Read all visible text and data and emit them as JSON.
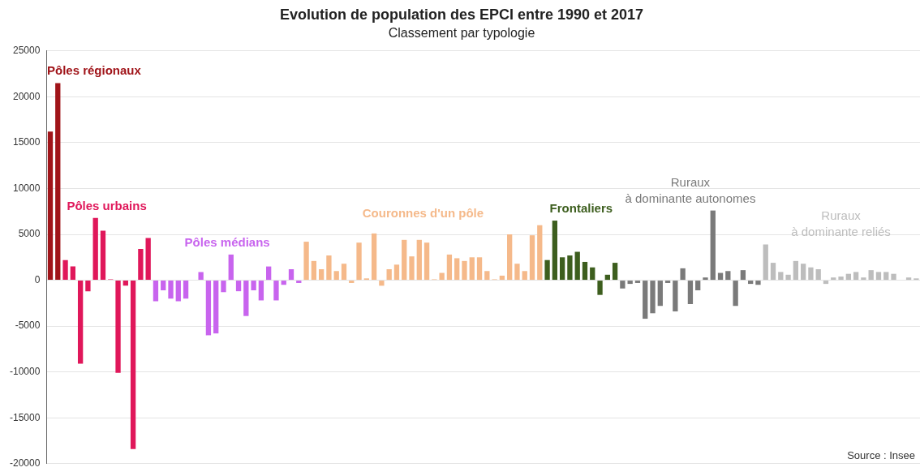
{
  "chart_data": {
    "type": "bar",
    "title": "Evolution de population des EPCI entre 1990 et 2017",
    "subtitle": "Classement par typologie",
    "categories": [
      null,
      null,
      null,
      null,
      null,
      null,
      null,
      null,
      null,
      null,
      null,
      null,
      null,
      null,
      null,
      null,
      null,
      null,
      null,
      null,
      null,
      null,
      null,
      null,
      null,
      null,
      null,
      null,
      null,
      null,
      null,
      null,
      null,
      null,
      null,
      null,
      null,
      null,
      null,
      null,
      null,
      null,
      null,
      null,
      null,
      null,
      null,
      null,
      null,
      null,
      null,
      null,
      null,
      null,
      null,
      null,
      null,
      null,
      null,
      null,
      null,
      null,
      null,
      null,
      null,
      null,
      null,
      null,
      null,
      null,
      null,
      null,
      null,
      null,
      null,
      null,
      null,
      null,
      null,
      null,
      null,
      null,
      null,
      null,
      null,
      null,
      null,
      null,
      null,
      null,
      null,
      null,
      null,
      null,
      null,
      null,
      null,
      null,
      null,
      null,
      null,
      null,
      null,
      null,
      null,
      null,
      null,
      null,
      null,
      null,
      null,
      null,
      null,
      null,
      null,
      null
    ],
    "series": [
      {
        "name": "Pôles régionaux",
        "color": "#a01419",
        "values": [
          16200,
          21500,
          null,
          null,
          null,
          null,
          null,
          null,
          null,
          null,
          null,
          null,
          null,
          null,
          null,
          null,
          null,
          null,
          null,
          null,
          null,
          null,
          null,
          null,
          null,
          null,
          null,
          null,
          null,
          null,
          null,
          null,
          null,
          null,
          null,
          null,
          null,
          null,
          null,
          null,
          null,
          null,
          null,
          null,
          null,
          null,
          null,
          null,
          null,
          null,
          null,
          null,
          null,
          null,
          null,
          null,
          null,
          null,
          null,
          null,
          null,
          null,
          null,
          null,
          null,
          null,
          null,
          null,
          null,
          null,
          null,
          null,
          null,
          null,
          null,
          null,
          null,
          null,
          null,
          null,
          null,
          null,
          null,
          null,
          null,
          null,
          null,
          null,
          null,
          null,
          null,
          null,
          null,
          null,
          null,
          null,
          null,
          null,
          null,
          null,
          null,
          null,
          null,
          null,
          null,
          null,
          null,
          null,
          null,
          null,
          null,
          null,
          null,
          null,
          null,
          null
        ]
      },
      {
        "name": "Pôles urbains",
        "color": "#e0175a",
        "values": [
          null,
          null,
          2200,
          1500,
          -9100,
          -1200,
          6800,
          5400,
          100,
          -10100,
          -600,
          -18400,
          3400,
          4600,
          null,
          null,
          null,
          null,
          null,
          null,
          null,
          null,
          null,
          null,
          null,
          null,
          null,
          null,
          null,
          null,
          null,
          null,
          null,
          null,
          null,
          null,
          null,
          null,
          null,
          null,
          null,
          null,
          null,
          null,
          null,
          null,
          null,
          null,
          null,
          null,
          null,
          null,
          null,
          null,
          null,
          null,
          null,
          null,
          null,
          null,
          null,
          null,
          null,
          null,
          null,
          null,
          null,
          null,
          null,
          null,
          null,
          null,
          null,
          null,
          null,
          null,
          null,
          null,
          null,
          null,
          null,
          null,
          null,
          null,
          null,
          null,
          null,
          null,
          null,
          null,
          null,
          null,
          null,
          null,
          null,
          null,
          null,
          null,
          null,
          null,
          null,
          null,
          null,
          null,
          null,
          null,
          null,
          null,
          null,
          null,
          null,
          null,
          null,
          null,
          null,
          null
        ]
      },
      {
        "name": "Pôles médians",
        "color": "#c864ee",
        "values": [
          null,
          null,
          null,
          null,
          null,
          null,
          null,
          null,
          null,
          null,
          null,
          null,
          null,
          null,
          -2300,
          -1100,
          -2000,
          -2300,
          -2000,
          0,
          900,
          -6000,
          -5800,
          -1300,
          2800,
          -1200,
          -3900,
          -1100,
          -2200,
          1500,
          -2200,
          -500,
          1200,
          -300,
          null,
          null,
          null,
          null,
          null,
          null,
          null,
          null,
          null,
          null,
          null,
          null,
          null,
          null,
          null,
          null,
          null,
          null,
          null,
          null,
          null,
          null,
          null,
          null,
          null,
          null,
          null,
          null,
          null,
          null,
          null,
          null,
          null,
          null,
          null,
          null,
          null,
          null,
          null,
          null,
          null,
          null,
          null,
          null,
          null,
          null,
          null,
          null,
          null,
          null,
          null,
          null,
          null,
          null,
          null,
          null,
          null,
          null,
          null,
          null,
          null,
          null,
          null,
          null,
          null,
          null,
          null,
          null,
          null,
          null,
          null,
          null,
          null,
          null,
          null,
          null,
          null,
          null,
          null,
          null,
          null,
          null
        ]
      },
      {
        "name": "Couronnes d'un pôle",
        "color": "#f5b98a",
        "values": [
          null,
          null,
          null,
          null,
          null,
          null,
          null,
          null,
          null,
          null,
          null,
          null,
          null,
          null,
          null,
          null,
          null,
          null,
          null,
          null,
          null,
          null,
          null,
          null,
          null,
          null,
          null,
          null,
          null,
          null,
          null,
          null,
          null,
          null,
          4200,
          2100,
          1200,
          2700,
          1000,
          1800,
          -300,
          4100,
          200,
          5100,
          -600,
          1200,
          1700,
          4400,
          2600,
          4400,
          4100,
          100,
          800,
          2800,
          2400,
          2100,
          2500,
          2500,
          1000,
          100,
          500,
          5000,
          1800,
          1000,
          4900,
          6000,
          null,
          null,
          null,
          null,
          null,
          null,
          null,
          null,
          null,
          null,
          null,
          null,
          null,
          null,
          null,
          null,
          null,
          null,
          null,
          null,
          null,
          null,
          null,
          null,
          null,
          null,
          null,
          null,
          null,
          null,
          null,
          null,
          null,
          null,
          null,
          null,
          null,
          null,
          null,
          null,
          null,
          null,
          null,
          null,
          null,
          null,
          null,
          null,
          null,
          null
        ]
      },
      {
        "name": "Frontaliers",
        "color": "#3d5e1e",
        "values": [
          null,
          null,
          null,
          null,
          null,
          null,
          null,
          null,
          null,
          null,
          null,
          null,
          null,
          null,
          null,
          null,
          null,
          null,
          null,
          null,
          null,
          null,
          null,
          null,
          null,
          null,
          null,
          null,
          null,
          null,
          null,
          null,
          null,
          null,
          null,
          null,
          null,
          null,
          null,
          null,
          null,
          null,
          null,
          null,
          null,
          null,
          null,
          null,
          null,
          null,
          null,
          null,
          null,
          null,
          null,
          null,
          null,
          null,
          null,
          null,
          null,
          null,
          null,
          null,
          null,
          null,
          2200,
          6500,
          2500,
          2700,
          3100,
          2000,
          1400,
          -1600,
          600,
          1900,
          null,
          null,
          null,
          null,
          null,
          null,
          null,
          null,
          null,
          null,
          null,
          null,
          null,
          null,
          null,
          null,
          null,
          null,
          null,
          null,
          null,
          null,
          null,
          null,
          null,
          null,
          null,
          null,
          null,
          null,
          null,
          null,
          null,
          null,
          null,
          null,
          null,
          null,
          null,
          null
        ]
      },
      {
        "name": "Ruraux\nà dominante autonomes",
        "color": "#7a7a7a",
        "values": [
          null,
          null,
          null,
          null,
          null,
          null,
          null,
          null,
          null,
          null,
          null,
          null,
          null,
          null,
          null,
          null,
          null,
          null,
          null,
          null,
          null,
          null,
          null,
          null,
          null,
          null,
          null,
          null,
          null,
          null,
          null,
          null,
          null,
          null,
          null,
          null,
          null,
          null,
          null,
          null,
          null,
          null,
          null,
          null,
          null,
          null,
          null,
          null,
          null,
          null,
          null,
          null,
          null,
          null,
          null,
          null,
          null,
          null,
          null,
          null,
          null,
          null,
          null,
          null,
          null,
          null,
          null,
          null,
          null,
          null,
          null,
          null,
          null,
          null,
          null,
          null,
          -900,
          -400,
          -300,
          -4200,
          -3600,
          -2800,
          -300,
          -3400,
          1300,
          -2600,
          -1100,
          300,
          7600,
          800,
          1000,
          -2800,
          1100,
          -400,
          -500,
          null,
          null,
          null,
          null,
          null,
          null,
          null,
          null,
          null,
          null,
          null,
          null,
          null,
          null,
          null,
          null,
          null,
          null,
          null,
          null,
          null
        ]
      },
      {
        "name": "Ruraux\nà dominante reliés",
        "color": "#bdbdbd",
        "values": [
          null,
          null,
          null,
          null,
          null,
          null,
          null,
          null,
          null,
          null,
          null,
          null,
          null,
          null,
          null,
          null,
          null,
          null,
          null,
          null,
          null,
          null,
          null,
          null,
          null,
          null,
          null,
          null,
          null,
          null,
          null,
          null,
          null,
          null,
          null,
          null,
          null,
          null,
          null,
          null,
          null,
          null,
          null,
          null,
          null,
          null,
          null,
          null,
          null,
          null,
          null,
          null,
          null,
          null,
          null,
          null,
          null,
          null,
          null,
          null,
          null,
          null,
          null,
          null,
          null,
          null,
          null,
          null,
          null,
          null,
          null,
          null,
          null,
          null,
          null,
          null,
          null,
          null,
          null,
          null,
          null,
          null,
          null,
          null,
          null,
          null,
          null,
          null,
          null,
          null,
          null,
          null,
          null,
          null,
          null,
          3900,
          1900,
          900,
          600,
          2100,
          1800,
          1400,
          1200,
          -400,
          300,
          400,
          700,
          900,
          300,
          1100,
          900,
          900,
          700,
          0,
          300,
          200
        ]
      }
    ],
    "ylim": [
      -20000,
      25000
    ],
    "yticks": [
      -20000,
      -15000,
      -10000,
      -5000,
      0,
      5000,
      10000,
      15000,
      20000,
      25000
    ],
    "grid": "y",
    "legend": false,
    "tick_labels": "y",
    "annotations": [
      "Source : Insee"
    ]
  }
}
